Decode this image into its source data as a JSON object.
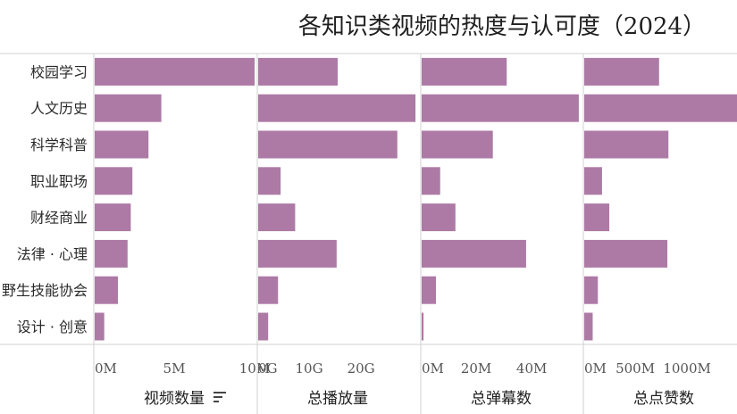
{
  "chart_data": {
    "type": "bar",
    "title": "各知识类视频的热度与认可度（2024）",
    "bar_color": "#ad7aa5",
    "categories": [
      "校园学习",
      "人文历史",
      "科学科普",
      "职业职场",
      "财经商业",
      "法律 · 心理",
      "野生技能协会",
      "设计 · 创意"
    ],
    "panels": [
      {
        "xlabel": "视频数量",
        "sort_icon": "sort-descending-icon",
        "xlim": [
          0,
          10000000
        ],
        "ticks": [
          {
            "value": 0,
            "label": "0M"
          },
          {
            "value": 5000000,
            "label": "5M"
          },
          {
            "value": 10000000,
            "label": "10M"
          }
        ],
        "values": [
          10000000,
          4200000,
          3400000,
          2400000,
          2300000,
          2100000,
          1500000,
          650000
        ]
      },
      {
        "xlabel": "总播放量",
        "xlim": [
          0,
          31000000000
        ],
        "ticks": [
          {
            "value": 0,
            "label": "0G"
          },
          {
            "value": 10000000000,
            "label": "10G"
          },
          {
            "value": 20000000000,
            "label": "20G"
          }
        ],
        "values": [
          15500000000,
          30500000000,
          27000000000,
          4500000000,
          7300000000,
          15300000000,
          4000000000,
          2100000000
        ]
      },
      {
        "xlabel": "总弹幕数",
        "xlim": [
          0,
          58000000
        ],
        "ticks": [
          {
            "value": 0,
            "label": "0M"
          },
          {
            "value": 20000000,
            "label": "20M"
          },
          {
            "value": 40000000,
            "label": "40M"
          }
        ],
        "values": [
          31000000,
          57000000,
          26000000,
          7000000,
          12500000,
          38000000,
          5500000,
          1000000
        ]
      },
      {
        "xlabel": "总点赞数",
        "xlim": [
          0,
          1550000000
        ],
        "ticks": [
          {
            "value": 0,
            "label": "0M"
          },
          {
            "value": 500000000,
            "label": "500M"
          },
          {
            "value": 1000000000,
            "label": "1000M"
          }
        ],
        "values": [
          730000000,
          1570000000,
          820000000,
          180000000,
          250000000,
          810000000,
          140000000,
          90000000
        ]
      }
    ],
    "grid": false,
    "legend": "none"
  }
}
